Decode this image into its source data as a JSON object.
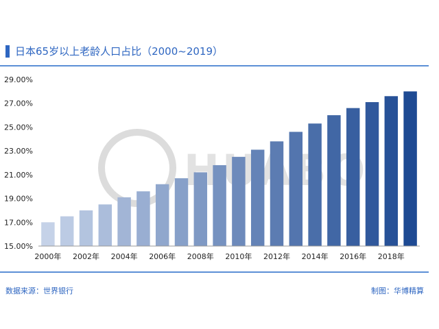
{
  "header": {
    "title": "日本65岁以上老龄人口占比（2000~2019）"
  },
  "footer": {
    "source": "数据来源：世界银行",
    "maker": "制图：华博精算"
  },
  "watermark": {
    "text": "HUABO"
  },
  "colors": {
    "accent": "#2e66c1",
    "bar_light": "#c5d2e8",
    "bar_dark": "#1e4a93"
  },
  "chart_data": {
    "type": "bar",
    "title": "日本65岁以上老龄人口占比（2000~2019）",
    "categories": [
      "2000",
      "2001",
      "2002",
      "2003",
      "2004",
      "2005",
      "2006",
      "2007",
      "2008",
      "2009",
      "2010",
      "2011",
      "2012",
      "2013",
      "2014",
      "2015",
      "2016",
      "2017",
      "2018",
      "2019"
    ],
    "x_tick_labels": [
      "2000年",
      "2002年",
      "2004年",
      "2006年",
      "2008年",
      "2010年",
      "2012年",
      "2014年",
      "2016年",
      "2018年"
    ],
    "values": [
      17.0,
      17.5,
      18.0,
      18.5,
      19.1,
      19.6,
      20.2,
      20.7,
      21.2,
      21.8,
      22.5,
      23.1,
      23.8,
      24.6,
      25.3,
      26.0,
      26.6,
      27.1,
      27.6,
      28.0
    ],
    "ylim": [
      15.0,
      29.0
    ],
    "y_ticks": [
      "15.00%",
      "17.00%",
      "19.00%",
      "21.00%",
      "23.00%",
      "25.00%",
      "27.00%",
      "29.00%"
    ],
    "xlabel": "",
    "ylabel": "",
    "grid": false,
    "legend": "none"
  }
}
